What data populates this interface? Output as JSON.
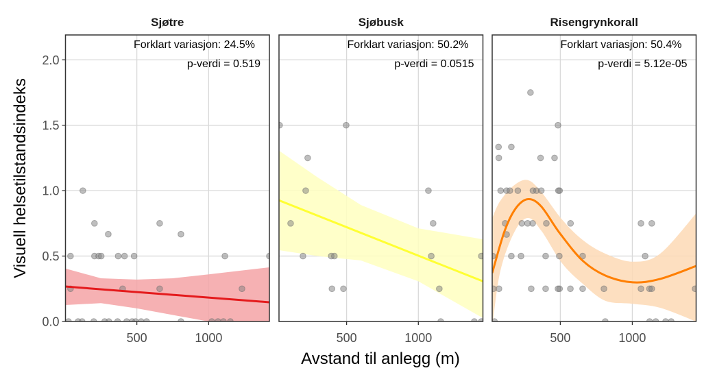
{
  "chart_data": {
    "type": "scatter",
    "xlabel": "Avstand til anlegg (m)",
    "ylabel": "Visuell helsetilstandsindeks",
    "ylim": [
      0,
      2.19
    ],
    "yticks": [
      0,
      0.5,
      1.0,
      1.5,
      2.0
    ],
    "ytick_labels": [
      "0.0",
      "0.5",
      "1.0",
      "1.5",
      "2.0"
    ],
    "xticks": [
      500,
      1000
    ],
    "xtick_labels": [
      "500",
      "1000"
    ],
    "grid": true,
    "point_color": "#808080",
    "panels": [
      {
        "title": "Sjøtre",
        "annotation_1": "Forklart variasjon: 24.5%",
        "annotation_2": "p-verdi = 0.519",
        "xlim": [
          3,
          1423
        ],
        "line_color": "#e41a1c",
        "ribbon_color": "#f4a3a6",
        "points": [
          [
            124,
            1.0
          ],
          [
            205,
            0.75
          ],
          [
            301,
            0.667
          ],
          [
            659,
            0.75
          ],
          [
            807,
            0.667
          ],
          [
            38,
            0.5
          ],
          [
            205,
            0.5
          ],
          [
            234,
            0.5
          ],
          [
            252,
            0.5
          ],
          [
            370,
            0.5
          ],
          [
            414,
            0.5
          ],
          [
            481,
            0.5
          ],
          [
            1113,
            0.5
          ],
          [
            1423,
            0.5
          ],
          [
            38,
            0.25
          ],
          [
            401,
            0.25
          ],
          [
            659,
            0.25
          ],
          [
            1232,
            0.25
          ],
          [
            24,
            0
          ],
          [
            91,
            0
          ],
          [
            119,
            0
          ],
          [
            200,
            0
          ],
          [
            276,
            0
          ],
          [
            305,
            0
          ],
          [
            366,
            0
          ],
          [
            429,
            0
          ],
          [
            467,
            0
          ],
          [
            491,
            0
          ],
          [
            530,
            0
          ],
          [
            568,
            0
          ],
          [
            807,
            0
          ],
          [
            1022,
            0
          ],
          [
            1065,
            0
          ],
          [
            1103,
            0
          ],
          [
            1151,
            0
          ]
        ],
        "fit": {
          "x": [
            3,
            1423
          ],
          "y": [
            0.267,
            0.147
          ]
        },
        "ribbon": {
          "x": [
            3,
            250,
            500,
            750,
            1000,
            1423
          ],
          "lower": [
            0.126,
            0.14,
            0.1,
            0.05,
            0.0,
            -0.12
          ],
          "upper": [
            0.405,
            0.33,
            0.32,
            0.33,
            0.36,
            0.414
          ]
        }
      },
      {
        "title": "Sjøbusk",
        "annotation_1": "Forklart variasjon: 50.2%",
        "annotation_2": "p-verdi = 0.0515",
        "xlim": [
          29,
          1450
        ],
        "line_color": "#ffff33",
        "ribbon_color": "#ffffc0",
        "points": [
          [
            33,
            1.5
          ],
          [
            497,
            1.5
          ],
          [
            229,
            1.25
          ],
          [
            215,
            1.0
          ],
          [
            1070,
            1.0
          ],
          [
            110,
            0.75
          ],
          [
            1103,
            0.75
          ],
          [
            196,
            0.5
          ],
          [
            393,
            0.5
          ],
          [
            415,
            0.5
          ],
          [
            1090,
            0.5
          ],
          [
            1439,
            0.5
          ],
          [
            398,
            0.25
          ],
          [
            478,
            0.25
          ],
          [
            1146,
            0.25
          ],
          [
            1156,
            0
          ],
          [
            1390,
            0
          ],
          [
            1439,
            0
          ]
        ],
        "fit": {
          "x": [
            29,
            1450
          ],
          "y": [
            0.926,
            0.307
          ]
        },
        "ribbon": {
          "x": [
            29,
            300,
            600,
            1000,
            1450
          ],
          "lower": [
            0.545,
            0.5,
            0.466,
            0.307,
            0.026
          ],
          "upper": [
            1.306,
            1.1,
            0.89,
            0.712,
            0.628
          ]
        }
      },
      {
        "title": "Risengrynkorall",
        "annotation_1": "Forklart variasjon: 50.4%",
        "annotation_2": "p-verdi = 5.12e-05",
        "xlim": [
          27,
          1443
        ],
        "line_color": "#ff7f00",
        "ribbon_color": "#fdd9b5",
        "points": [
          [
            293,
            1.75
          ],
          [
            484,
            1.5
          ],
          [
            71,
            1.334
          ],
          [
            160,
            1.334
          ],
          [
            73,
            1.25
          ],
          [
            363,
            1.25
          ],
          [
            460,
            1.25
          ],
          [
            86,
            1.0
          ],
          [
            127,
            1.0
          ],
          [
            150,
            1.0
          ],
          [
            205,
            1.0
          ],
          [
            310,
            1.0
          ],
          [
            335,
            1.0
          ],
          [
            368,
            1.0
          ],
          [
            487,
            1.0
          ],
          [
            495,
            1.0
          ],
          [
            117,
            0.75
          ],
          [
            233,
            0.75
          ],
          [
            273,
            0.75
          ],
          [
            308,
            0.75
          ],
          [
            403,
            0.75
          ],
          [
            571,
            0.75
          ],
          [
            1060,
            0.75
          ],
          [
            1135,
            0.75
          ],
          [
            127,
            0.665
          ],
          [
            31,
            0.5
          ],
          [
            160,
            0.5
          ],
          [
            227,
            0.5
          ],
          [
            398,
            0.5
          ],
          [
            493,
            0.5
          ],
          [
            655,
            0.5
          ],
          [
            1089,
            0.5
          ],
          [
            35,
            0.25
          ],
          [
            74,
            0.25
          ],
          [
            298,
            0.25
          ],
          [
            398,
            0.25
          ],
          [
            484,
            0.25
          ],
          [
            495,
            0.25
          ],
          [
            570,
            0.25
          ],
          [
            655,
            0.25
          ],
          [
            803,
            0.25
          ],
          [
            1060,
            0.25
          ],
          [
            1119,
            0.25
          ],
          [
            1135,
            0.25
          ],
          [
            1436,
            0.25
          ],
          [
            43,
            0
          ],
          [
            812,
            0
          ],
          [
            1120,
            0
          ],
          [
            1163,
            0
          ],
          [
            1231,
            0
          ],
          [
            1270,
            0
          ]
        ],
        "fit": {
          "x": [
            27,
            114,
            194,
            278,
            368,
            495,
            654,
            813,
            1003,
            1193,
            1443
          ],
          "y": [
            0.37,
            0.694,
            0.87,
            0.935,
            0.879,
            0.677,
            0.466,
            0.351,
            0.299,
            0.325,
            0.424
          ]
        },
        "ribbon": {
          "x": [
            27,
            82,
            178,
            273,
            368,
            510,
            654,
            813,
            1003,
            1193,
            1443
          ],
          "lower": [
            -0.05,
            0.378,
            0.677,
            0.791,
            0.694,
            0.448,
            0.29,
            0.158,
            0.135,
            0.105,
            0.0
          ],
          "upper": [
            0.79,
            0.92,
            1.04,
            1.081,
            0.99,
            0.782,
            0.624,
            0.518,
            0.457,
            0.518,
            0.826
          ]
        }
      }
    ]
  }
}
